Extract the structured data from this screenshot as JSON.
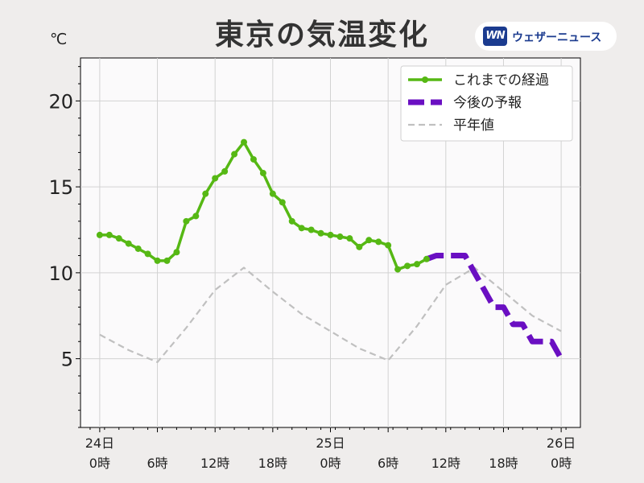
{
  "header": {
    "title": "東京の気温変化",
    "unit": "℃",
    "logo_mark": "WN",
    "logo_text": "ウェザーニュース"
  },
  "colors": {
    "observed": "#56b814",
    "forecast": "#6a0fc2",
    "normal": "#c0c0c0"
  },
  "chart_data": {
    "type": "line",
    "title": "東京の気温変化",
    "ylabel": "℃",
    "xlim": [
      -2,
      50
    ],
    "ylim": [
      1,
      22.5
    ],
    "y_ticks": [
      5,
      10,
      15,
      20
    ],
    "grid": true,
    "legend_position": "top-right",
    "x_tick_hours": [
      0,
      6,
      12,
      18,
      24,
      30,
      36,
      42,
      48
    ],
    "x_tick_labels": [
      [
        "24日",
        "0時"
      ],
      [
        "",
        "6時"
      ],
      [
        "",
        "12時"
      ],
      [
        "",
        "18時"
      ],
      [
        "25日",
        "0時"
      ],
      [
        "",
        "6時"
      ],
      [
        "",
        "12時"
      ],
      [
        "",
        "18時"
      ],
      [
        "26日",
        "0時"
      ]
    ],
    "series": [
      {
        "name": "これまでの経過",
        "style": "observed",
        "x": [
          0,
          1,
          2,
          3,
          4,
          5,
          6,
          7,
          8,
          9,
          10,
          11,
          12,
          13,
          14,
          15,
          16,
          17,
          18,
          19,
          20,
          21,
          22,
          23,
          24,
          25,
          26,
          27,
          28,
          29,
          30,
          31,
          32,
          33,
          34
        ],
        "y": [
          12.2,
          12.2,
          12.0,
          11.7,
          11.4,
          11.1,
          10.7,
          10.7,
          11.2,
          13.0,
          13.3,
          14.6,
          15.5,
          15.9,
          16.9,
          17.6,
          16.6,
          15.8,
          14.6,
          14.1,
          13.0,
          12.6,
          12.5,
          12.3,
          12.2,
          12.1,
          12.0,
          11.5,
          11.9,
          11.8,
          11.6,
          10.2,
          10.4,
          10.5,
          10.8
        ]
      },
      {
        "name": "今後の予報",
        "style": "forecast",
        "x": [
          34,
          35,
          36,
          37,
          38,
          39,
          40,
          41,
          42,
          43,
          44,
          45,
          46,
          47,
          48
        ],
        "y": [
          10.8,
          11.0,
          11.0,
          11.0,
          11.0,
          10.0,
          9.0,
          8.0,
          8.0,
          7.0,
          7.0,
          6.0,
          6.0,
          6.0,
          5.0
        ]
      },
      {
        "name": "平年値",
        "style": "normal",
        "x": [
          0,
          3,
          6,
          9,
          12,
          15,
          18,
          21,
          24,
          27,
          30,
          33,
          36,
          39,
          42,
          45,
          48
        ],
        "y": [
          6.4,
          5.5,
          4.8,
          6.8,
          9.0,
          10.3,
          8.9,
          7.6,
          6.6,
          5.6,
          4.9,
          6.9,
          9.3,
          10.3,
          8.9,
          7.5,
          6.6
        ]
      }
    ]
  }
}
